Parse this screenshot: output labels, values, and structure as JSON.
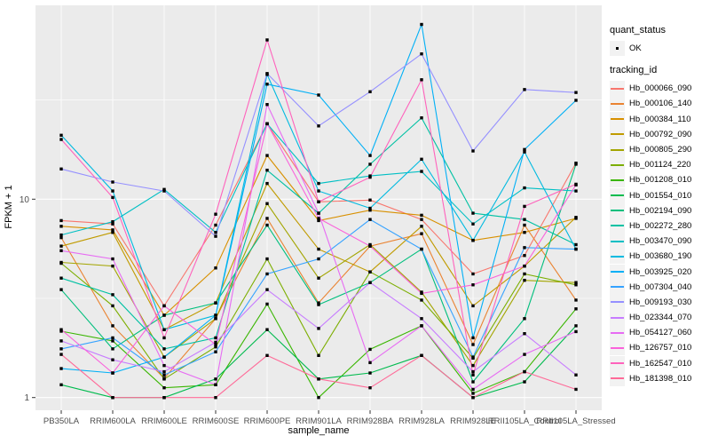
{
  "chart_data": {
    "type": "line",
    "title": "",
    "xlabel": "sample_name",
    "ylabel": "FPKM + 1",
    "y_scale": "log10",
    "ylim": [
      1,
      91
    ],
    "y_major_ticks": [
      1,
      10
    ],
    "y_tick_labels": [
      "1",
      "10"
    ],
    "y_minor_gridlines": [
      3.162,
      31.62
    ],
    "grid": true,
    "panel_bg": "#EBEBEB",
    "grid_color": "#FFFFFF",
    "tick_label_color": "#4D4D4D",
    "point_color": "#000000",
    "legend_position": "right",
    "categories": [
      "PB350LA",
      "RRIM600LA",
      "RRIM600LE",
      "RRIM600SE",
      "RRIM600PE",
      "RRIM901LA",
      "RRIM928BA",
      "RRIM928LA",
      "RRIM928LE",
      "RRII105LA_Control",
      "RRII105LA_Stressed"
    ],
    "legend": {
      "quant_status_title": "quant_status",
      "quant_status_items": [
        "OK"
      ],
      "tracking_id_title": "tracking_id"
    },
    "series": [
      {
        "name": "Hb_000066_090",
        "color": "#F8766D",
        "values": [
          7.8,
          7.5,
          2.9,
          7.4,
          24.0,
          9.7,
          9.9,
          7.9,
          4.2,
          5.2,
          15.2
        ]
      },
      {
        "name": "Hb_000106_140",
        "color": "#EA8331",
        "values": [
          6.4,
          2.3,
          1.25,
          2.5,
          8.0,
          3.0,
          5.8,
          6.7,
          1.85,
          7.4,
          3.1
        ]
      },
      {
        "name": "Hb_000384_110",
        "color": "#D89000",
        "values": [
          7.3,
          7.0,
          2.6,
          4.5,
          16.6,
          7.8,
          8.8,
          8.3,
          6.2,
          6.8,
          8.0
        ]
      },
      {
        "name": "Hb_000792_090",
        "color": "#C09B00",
        "values": [
          5.8,
          6.8,
          2.2,
          3.0,
          12.0,
          5.6,
          4.3,
          7.3,
          2.9,
          4.6,
          8.1
        ]
      },
      {
        "name": "Hb_000805_290",
        "color": "#A3A500",
        "values": [
          4.8,
          4.6,
          1.6,
          2.5,
          9.5,
          4.0,
          5.9,
          3.4,
          1.45,
          3.9,
          3.8
        ]
      },
      {
        "name": "Hb_001124_220",
        "color": "#7CAE00",
        "values": [
          4.75,
          2.9,
          1.24,
          1.8,
          5.0,
          1.63,
          4.3,
          3.1,
          1.58,
          4.2,
          3.7
        ]
      },
      {
        "name": "Hb_001208_010",
        "color": "#39B600",
        "values": [
          2.16,
          1.93,
          1.12,
          1.16,
          2.96,
          1.0,
          1.75,
          2.3,
          1.05,
          1.35,
          2.8
        ]
      },
      {
        "name": "Hb_001554_010",
        "color": "#00BB4E",
        "values": [
          1.16,
          1.0,
          1.0,
          1.24,
          2.2,
          1.24,
          1.33,
          1.63,
          1.0,
          1.2,
          2.3
        ]
      },
      {
        "name": "Hb_002194_090",
        "color": "#00BF7D",
        "values": [
          3.5,
          1.76,
          2.6,
          3.0,
          7.4,
          2.94,
          3.8,
          5.6,
          1.2,
          2.5,
          15.0
        ]
      },
      {
        "name": "Hb_002272_280",
        "color": "#00C1A3",
        "values": [
          4.0,
          3.3,
          1.76,
          2.0,
          14.0,
          8.5,
          15.0,
          25.7,
          8.5,
          7.9,
          5.9
        ]
      },
      {
        "name": "Hb_003470_090",
        "color": "#00BFC4",
        "values": [
          6.6,
          7.7,
          11.2,
          6.8,
          24.0,
          12.0,
          13.1,
          13.8,
          7.5,
          11.4,
          11.0
        ]
      },
      {
        "name": "Hb_003680_190",
        "color": "#00BAE0",
        "values": [
          21.0,
          11.0,
          2.2,
          2.6,
          42.5,
          11.0,
          9.0,
          15.9,
          6.2,
          17.3,
          5.6
        ]
      },
      {
        "name": "Hb_003925_020",
        "color": "#00B0F6",
        "values": [
          1.4,
          1.33,
          1.6,
          2.6,
          38.0,
          33.5,
          16.6,
          76.0,
          2.0,
          17.8,
          31.5
        ]
      },
      {
        "name": "Hb_007304_040",
        "color": "#35A2FF",
        "values": [
          1.76,
          2.0,
          1.3,
          1.7,
          4.2,
          5.0,
          7.9,
          5.6,
          1.6,
          5.7,
          5.6
        ]
      },
      {
        "name": "Hb_009193_030",
        "color": "#9590FF",
        "values": [
          14.2,
          12.2,
          11.0,
          6.5,
          43.0,
          23.4,
          34.8,
          54.0,
          17.5,
          35.7,
          34.5
        ]
      },
      {
        "name": "Hb_023344_070",
        "color": "#C77CFF",
        "values": [
          1.93,
          1.55,
          1.35,
          1.9,
          3.5,
          2.23,
          3.8,
          2.5,
          1.35,
          2.1,
          1.3
        ]
      },
      {
        "name": "Hb_054127_060",
        "color": "#E76BF3",
        "values": [
          5.5,
          5.0,
          1.45,
          1.16,
          30.0,
          8.5,
          1.5,
          2.3,
          1.1,
          1.65,
          2.15
        ]
      },
      {
        "name": "Hb_126757_010",
        "color": "#FA62DB",
        "values": [
          2.2,
          1.33,
          2.9,
          1.85,
          24.0,
          8.0,
          5.8,
          3.35,
          3.7,
          4.6,
          11.8
        ]
      },
      {
        "name": "Hb_162547_010",
        "color": "#FF62BC",
        "values": [
          20.0,
          10.2,
          2.0,
          8.4,
          63.5,
          9.7,
          12.9,
          40.0,
          1.3,
          9.2,
          11.9
        ]
      },
      {
        "name": "Hb_181398_010",
        "color": "#FF6A98",
        "values": [
          1.65,
          1.0,
          1.0,
          1.0,
          1.63,
          1.24,
          1.12,
          1.63,
          1.0,
          1.35,
          1.1
        ]
      }
    ]
  }
}
